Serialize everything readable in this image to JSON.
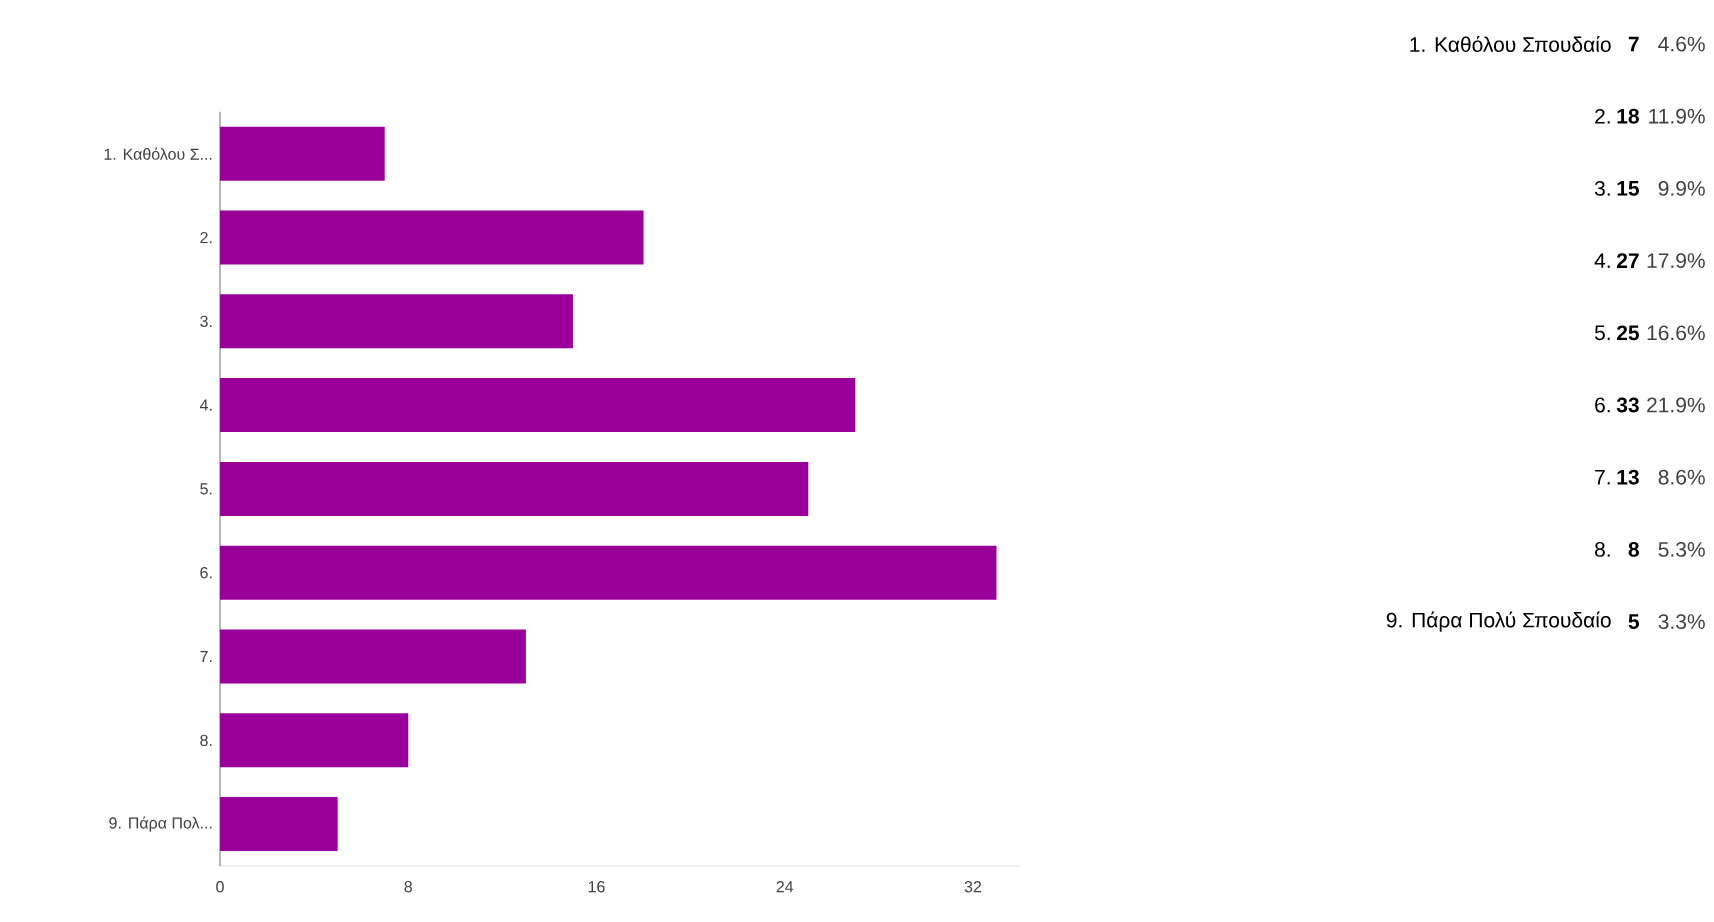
{
  "chart_data": {
    "type": "bar",
    "orientation": "horizontal",
    "categories": [
      "1. Καθόλου Σ...",
      "2.",
      "3.",
      "4.",
      "5.",
      "6.",
      "7.",
      "8.",
      "9. Πάρα Πολ..."
    ],
    "values": [
      7,
      18,
      15,
      27,
      25,
      33,
      13,
      8,
      5
    ],
    "color": "#990099",
    "xlim": [
      0,
      34
    ],
    "xticks": [
      0,
      8,
      16,
      24,
      32
    ],
    "annotations": [
      "1. Καθόλου Σπουδαίο",
      "7",
      "4.6%",
      "2.",
      "18",
      "11.9%",
      "3.",
      "15",
      "9.9%",
      "4.",
      "27",
      "17.9%",
      "5.",
      "25",
      "16.6%",
      "6.",
      "33",
      "21.9%",
      "7.",
      "13",
      "8.6%",
      "8.",
      "8",
      "5.3%",
      "9. Πάρα Πολύ Σπουδαίο",
      "5",
      "3.3%"
    ]
  }
}
